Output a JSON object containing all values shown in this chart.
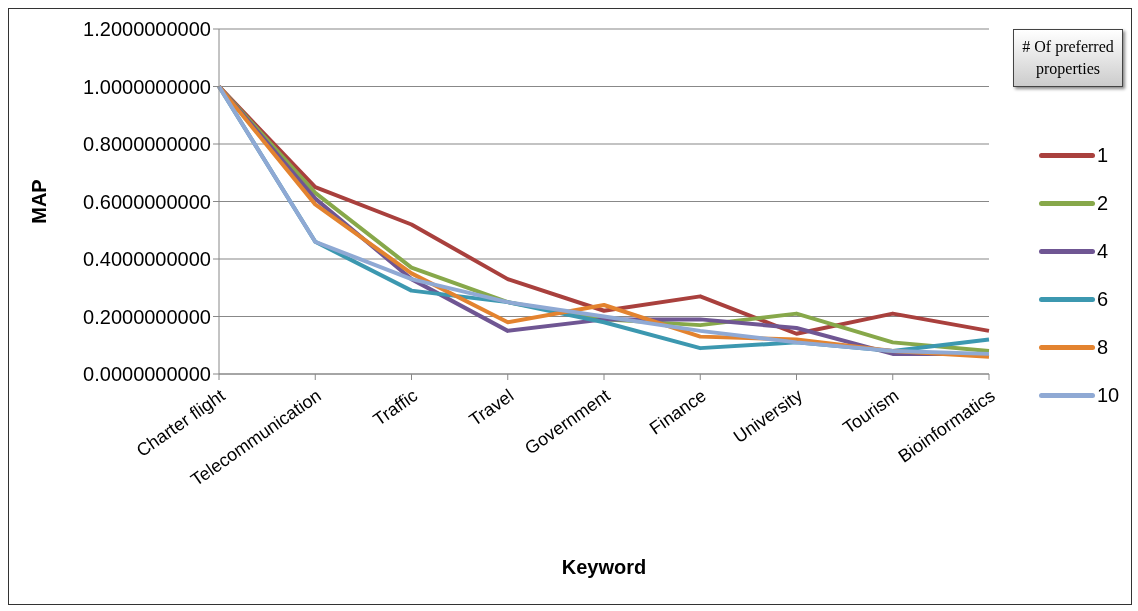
{
  "chart_data": {
    "type": "line",
    "xlabel": "Keyword",
    "ylabel": "MAP",
    "legend_title": "# Of preferred properties",
    "legend": "right",
    "grid": "y",
    "marker": "none",
    "categories": [
      "Charter flight",
      "Telecommunication",
      "Traffic",
      "Travel",
      "Government",
      "Finance",
      "University",
      "Tourism",
      "Bioinformatics"
    ],
    "ylim": [
      0,
      1.2
    ],
    "yticks": [
      {
        "value": 0,
        "label": "0.0000000000"
      },
      {
        "value": 0.2,
        "label": "0.2000000000"
      },
      {
        "value": 0.4,
        "label": "0.4000000000"
      },
      {
        "value": 0.6,
        "label": "0.6000000000"
      },
      {
        "value": 0.8,
        "label": "0.8000000000"
      },
      {
        "value": 1,
        "label": "1.0000000000"
      },
      {
        "value": 1.2,
        "label": "1.2000000000"
      }
    ],
    "series": [
      {
        "name": "1",
        "color": "#a9403d",
        "values": [
          1.0,
          0.65,
          0.52,
          0.33,
          0.22,
          0.27,
          0.14,
          0.21,
          0.15
        ]
      },
      {
        "name": "2",
        "color": "#87a84a",
        "values": [
          1.0,
          0.63,
          0.37,
          0.25,
          0.19,
          0.17,
          0.21,
          0.11,
          0.08
        ]
      },
      {
        "name": "4",
        "color": "#6f5693",
        "values": [
          1.0,
          0.61,
          0.33,
          0.15,
          0.19,
          0.19,
          0.16,
          0.07,
          0.07
        ]
      },
      {
        "name": "6",
        "color": "#3c98b0",
        "values": [
          1.0,
          0.46,
          0.29,
          0.25,
          0.18,
          0.09,
          0.11,
          0.08,
          0.12
        ]
      },
      {
        "name": "8",
        "color": "#e3832f",
        "values": [
          1.0,
          0.59,
          0.35,
          0.18,
          0.24,
          0.13,
          0.12,
          0.08,
          0.06
        ]
      },
      {
        "name": "10",
        "color": "#8fa9d4",
        "values": [
          1.0,
          0.46,
          0.33,
          0.25,
          0.2,
          0.15,
          0.11,
          0.08,
          0.07
        ]
      }
    ]
  }
}
